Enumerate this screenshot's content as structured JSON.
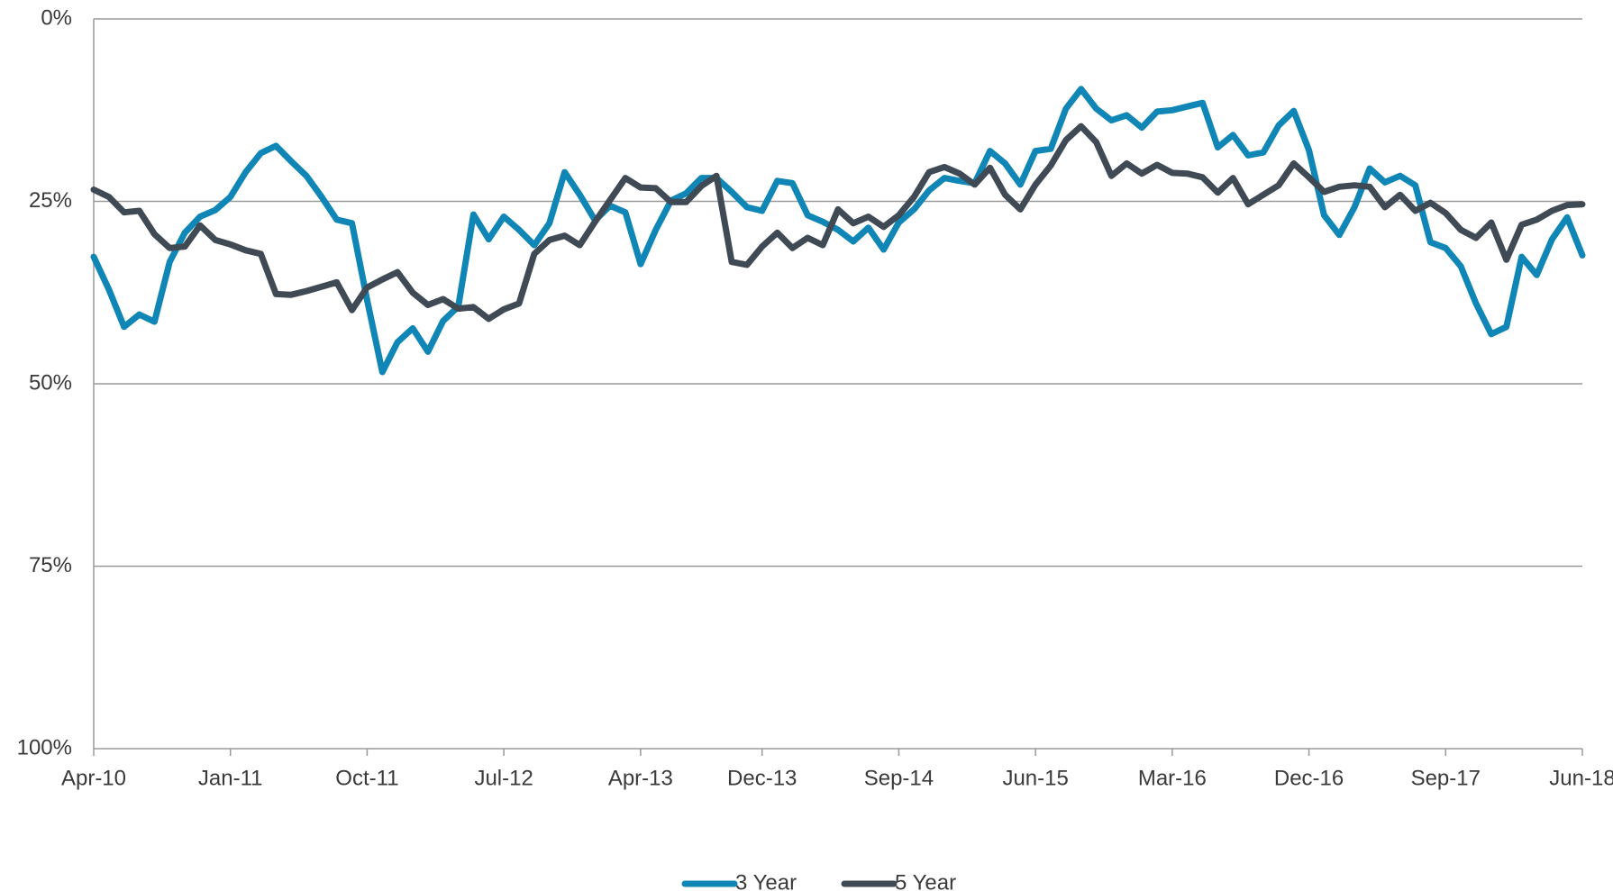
{
  "chart_data": {
    "type": "line",
    "categories": [
      "Apr-10",
      null,
      null,
      null,
      null,
      null,
      null,
      null,
      null,
      "Jan-11",
      null,
      null,
      null,
      null,
      null,
      null,
      null,
      null,
      "Oct-11",
      null,
      null,
      null,
      null,
      null,
      null,
      null,
      null,
      "Jul-12",
      null,
      null,
      null,
      null,
      null,
      null,
      null,
      null,
      "Apr-13",
      null,
      null,
      null,
      null,
      null,
      null,
      null,
      "Dec-13",
      null,
      null,
      null,
      null,
      null,
      null,
      null,
      null,
      "Sep-14",
      null,
      null,
      null,
      null,
      null,
      null,
      null,
      null,
      "Jun-15",
      null,
      null,
      null,
      null,
      null,
      null,
      null,
      null,
      "Mar-16",
      null,
      null,
      null,
      null,
      null,
      null,
      null,
      null,
      "Dec-16",
      null,
      null,
      null,
      null,
      null,
      null,
      null,
      null,
      "Sep-17",
      null,
      null,
      null,
      null,
      null,
      null,
      null,
      null,
      "Jun-18"
    ],
    "series": [
      {
        "name": "3 Year",
        "color": "#0f86b5",
        "values": [
          32.6,
          37.1,
          42.2,
          40.5,
          41.5,
          33.3,
          29.3,
          27.1,
          26.2,
          24.4,
          21.0,
          18.4,
          17.4,
          19.5,
          21.5,
          24.4,
          27.5,
          28.0,
          38.5,
          48.4,
          44.3,
          42.4,
          45.6,
          41.4,
          39.4,
          26.8,
          30.2,
          27.1,
          28.9,
          31.0,
          28.0,
          21.0,
          24.1,
          27.6,
          25.6,
          26.5,
          33.6,
          28.9,
          24.9,
          23.9,
          21.8,
          21.8,
          23.7,
          25.8,
          26.3,
          22.2,
          22.5,
          26.9,
          27.8,
          28.9,
          30.5,
          28.6,
          31.6,
          27.9,
          26.1,
          23.5,
          21.8,
          22.2,
          22.5,
          18.1,
          19.8,
          22.7,
          18.1,
          17.8,
          12.3,
          9.6,
          12.3,
          13.9,
          13.2,
          14.9,
          12.7,
          12.5,
          12.0,
          11.5,
          17.6,
          15.9,
          18.7,
          18.3,
          14.6,
          12.6,
          18.0,
          26.9,
          29.6,
          25.8,
          20.5,
          22.4,
          21.5,
          22.8,
          30.6,
          31.4,
          33.9,
          39.0,
          43.2,
          42.2,
          32.6,
          35.1,
          30.2,
          27.2,
          32.4
        ]
      },
      {
        "name": "5 Year",
        "color": "#3f4a55",
        "values": [
          23.4,
          24.4,
          26.5,
          26.3,
          29.5,
          31.4,
          31.2,
          28.3,
          30.3,
          30.9,
          31.7,
          32.2,
          37.7,
          37.8,
          37.3,
          36.7,
          36.1,
          39.9,
          36.8,
          35.7,
          34.7,
          37.5,
          39.2,
          38.4,
          39.7,
          39.5,
          41.1,
          39.8,
          39.0,
          32.2,
          30.3,
          29.7,
          31.0,
          27.8,
          24.8,
          21.8,
          23.1,
          23.2,
          25.1,
          25.1,
          22.9,
          21.5,
          33.3,
          33.7,
          31.2,
          29.3,
          31.4,
          30.0,
          31.0,
          26.1,
          28.0,
          27.1,
          28.5,
          26.9,
          24.4,
          21.0,
          20.3,
          21.2,
          22.7,
          20.4,
          24.1,
          26.1,
          22.7,
          20.1,
          16.6,
          14.7,
          16.9,
          21.5,
          19.8,
          21.2,
          20.0,
          21.1,
          21.2,
          21.7,
          23.8,
          21.8,
          25.4,
          24.1,
          22.8,
          19.8,
          21.7,
          23.7,
          23.0,
          22.8,
          23.0,
          25.8,
          24.1,
          26.3,
          25.2,
          26.6,
          28.9,
          30.0,
          27.9,
          33.0,
          28.2,
          27.5,
          26.3,
          25.5,
          25.4
        ]
      }
    ],
    "ylim": [
      0,
      100
    ],
    "y_inverted": true,
    "yticks": [
      {
        "value": 0,
        "label": "0%"
      },
      {
        "value": 25,
        "label": "25%"
      },
      {
        "value": 50,
        "label": "50%"
      },
      {
        "value": 75,
        "label": "75%"
      },
      {
        "value": 100,
        "label": "100%"
      }
    ],
    "grid": true,
    "legend": "bottom"
  }
}
